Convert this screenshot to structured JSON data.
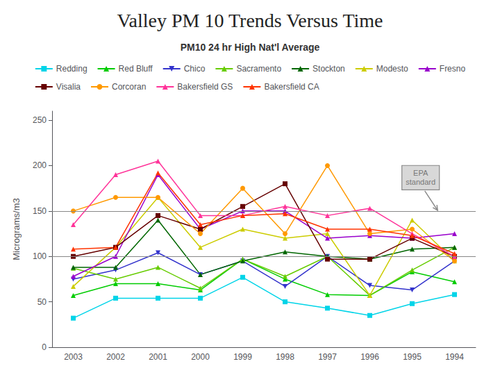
{
  "chart_data": {
    "type": "line",
    "title": "Valley PM 10 Trends Versus Time",
    "subtitle": "PM10 24 hr High Nat'l Average",
    "ylabel": "Micrograms/m3",
    "categories": [
      "2003",
      "2002",
      "2001",
      "2000",
      "1999",
      "1998",
      "1997",
      "1996",
      "1995",
      "1994"
    ],
    "series": [
      {
        "name": "Redding",
        "color": "#00d4e8",
        "marker": "square",
        "values": [
          32,
          54,
          54,
          54,
          77,
          50,
          43,
          35,
          48,
          58
        ]
      },
      {
        "name": "Red Bluff",
        "color": "#00cc00",
        "marker": "triangle-up",
        "values": [
          57,
          70,
          70,
          63,
          97,
          75,
          58,
          57,
          83,
          72
        ]
      },
      {
        "name": "Chico",
        "color": "#3333cc",
        "marker": "triangle-down",
        "values": [
          75,
          85,
          104,
          80,
          95,
          67,
          100,
          68,
          63,
          95
        ]
      },
      {
        "name": "Sacramento",
        "color": "#66cc00",
        "marker": "triangle-up",
        "values": [
          87,
          75,
          88,
          65,
          97,
          78,
          100,
          57,
          85,
          110
        ]
      },
      {
        "name": "Stockton",
        "color": "#006600",
        "marker": "triangle-up",
        "values": [
          88,
          88,
          140,
          80,
          95,
          105,
          100,
          97,
          108,
          110
        ]
      },
      {
        "name": "Modesto",
        "color": "#cccc00",
        "marker": "triangle-up",
        "values": [
          67,
          110,
          165,
          110,
          130,
          120,
          125,
          57,
          140,
          95
        ]
      },
      {
        "name": "Fresno",
        "color": "#9900cc",
        "marker": "triangle-up",
        "values": [
          78,
          100,
          190,
          130,
          150,
          150,
          120,
          123,
          120,
          125
        ]
      },
      {
        "name": "Visalia",
        "color": "#660000",
        "marker": "square",
        "values": [
          100,
          110,
          145,
          130,
          155,
          180,
          97,
          97,
          120,
          100
        ]
      },
      {
        "name": "Corcoran",
        "color": "#ff9900",
        "marker": "circle",
        "values": [
          150,
          165,
          165,
          125,
          175,
          125,
          200,
          125,
          130,
          95
        ]
      },
      {
        "name": "Bakersfield GS",
        "color": "#ff3399",
        "marker": "triangle-up",
        "values": [
          135,
          190,
          205,
          145,
          145,
          155,
          145,
          153,
          125,
          100
        ]
      },
      {
        "name": "Bakersfield CA",
        "color": "#ff3300",
        "marker": "triangle-up",
        "values": [
          108,
          110,
          192,
          135,
          145,
          147,
          130,
          130,
          123,
          103
        ]
      }
    ],
    "ylim": [
      0,
      260
    ],
    "yticks": [
      0,
      50,
      100,
      150,
      200,
      250
    ],
    "grid": false,
    "legend": "top",
    "reference_lines": [
      150,
      100
    ],
    "annotations": [
      {
        "text": "EPA\nstandard",
        "y": 150
      }
    ]
  }
}
